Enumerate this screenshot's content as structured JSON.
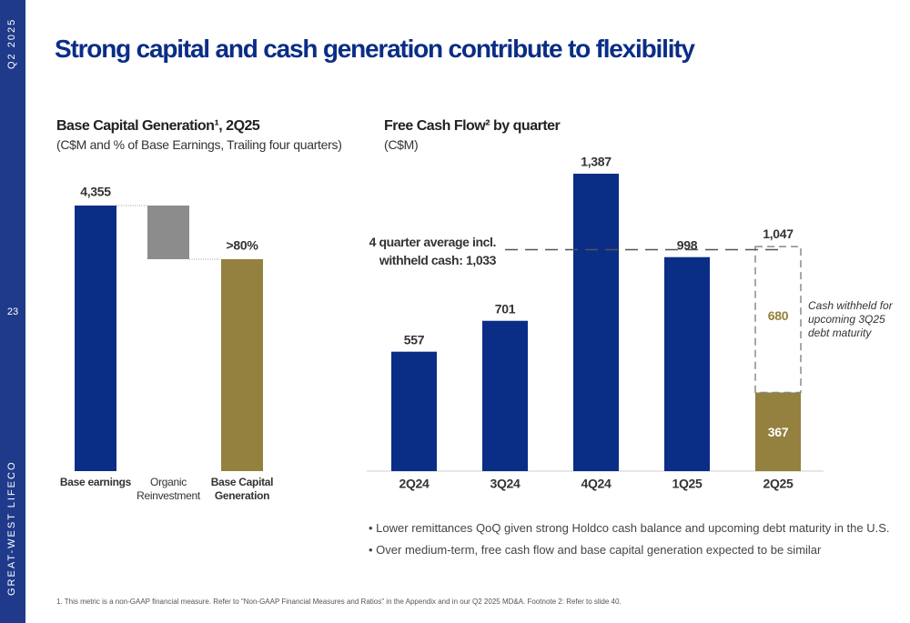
{
  "side": {
    "top": "Q2 2025",
    "page": "23",
    "bottom": "GREAT-WEST LIFECO"
  },
  "title": "Strong capital and cash generation contribute to flexibility",
  "chart_data": [
    {
      "type": "waterfall",
      "title": "Base Capital Generation¹, 2Q25",
      "subtitle": "(C$M and % of Base Earnings, Trailing four quarters)",
      "categories": [
        "Base earnings",
        "Organic Reinvestment",
        "Base Capital Generation"
      ],
      "measures": [
        "absolute",
        "relative",
        "total"
      ],
      "values": [
        4355,
        -880,
        3475
      ],
      "value_labels": [
        "4,355",
        null,
        null
      ],
      "colors": [
        "#0a2d86",
        "#8c8c8c",
        "#94803f"
      ],
      "total_annotation": ">80%"
    },
    {
      "type": "stacked_bar",
      "title": "Free Cash Flow² by quarter",
      "subtitle": "(C$M)",
      "categories": [
        "2Q24",
        "3Q24",
        "4Q24",
        "1Q25",
        "2Q25"
      ],
      "series": [
        {
          "color": "#0a2d86",
          "last_color": "#94803f",
          "values": [
            557,
            701,
            1387,
            998,
            367
          ],
          "value_labels": [
            "557",
            "701",
            "1,387",
            "998",
            "367"
          ]
        },
        {
          "color": "#8a8a8a",
          "label_color": "#94803f",
          "style": "dashed",
          "values": [
            null,
            null,
            null,
            null,
            680
          ]
        }
      ],
      "totals": [
        null,
        null,
        null,
        null,
        1047
      ],
      "total_labels": [
        null,
        null,
        null,
        null,
        "1,047"
      ],
      "average": {
        "value": 1033,
        "label": "4 quarter average incl. withheld cash: 1,033"
      },
      "note": "Cash withheld for upcoming 3Q25 debt maturity"
    }
  ],
  "bullets": [
    "Lower remittances QoQ given strong Holdco cash balance and upcoming debt maturity in the U.S.",
    "Over medium-term, free cash flow and base capital generation expected to be similar"
  ],
  "footnote": "1. This metric is a non-GAAP financial measure. Refer to \"Non-GAAP Financial Measures and Ratios\" in the Appendix and in our Q2 2025 MD&A. Footnote 2: Refer to slide 40."
}
